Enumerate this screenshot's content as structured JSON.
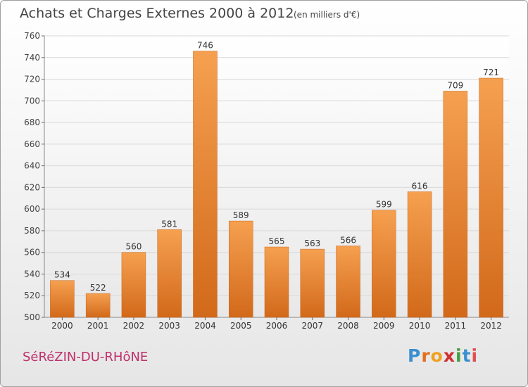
{
  "chart_data": {
    "type": "bar",
    "title": "Achats et Charges Externes 2000 à 2012",
    "subtitle": "(en milliers d'€)",
    "xlabel": "",
    "ylabel": "",
    "categories": [
      "2000",
      "2001",
      "2002",
      "2003",
      "2004",
      "2005",
      "2006",
      "2007",
      "2008",
      "2009",
      "2010",
      "2011",
      "2012"
    ],
    "values": [
      534,
      522,
      560,
      581,
      746,
      589,
      565,
      563,
      566,
      599,
      616,
      709,
      721
    ],
    "ylim": [
      500,
      760
    ],
    "yticks": [
      500,
      520,
      540,
      560,
      580,
      600,
      620,
      640,
      660,
      680,
      700,
      720,
      740,
      760
    ],
    "grid": true,
    "bar_color_top": "#f5a050",
    "bar_color_bottom": "#d2691a"
  },
  "footer": {
    "commune": "SéRéZIN-DU-RHôNE",
    "logo_letters": [
      "P",
      "r",
      "o",
      "x",
      "i",
      "t",
      "i"
    ],
    "logo_colors": [
      "#3a8fd0",
      "#e07020",
      "#f0a020",
      "#d03030",
      "#40a040",
      "#3a8fd0",
      "#e05050"
    ]
  }
}
